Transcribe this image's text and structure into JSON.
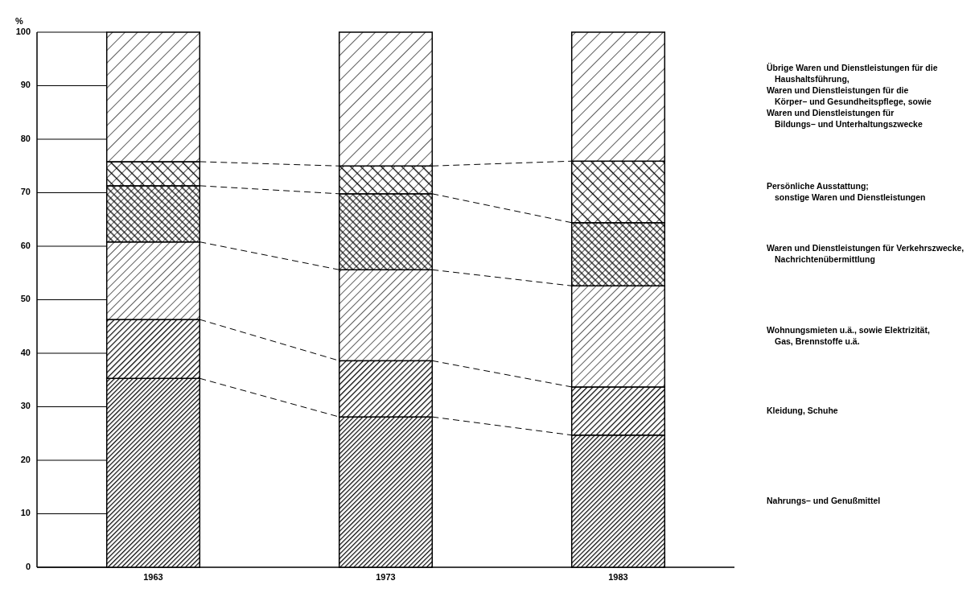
{
  "chart_data": {
    "type": "bar",
    "stacked": true,
    "ylabel": "%",
    "categories": [
      "1963",
      "1973",
      "1983"
    ],
    "ylim": [
      0,
      100
    ],
    "yticks": [
      0,
      10,
      20,
      30,
      40,
      50,
      60,
      70,
      80,
      90,
      100
    ],
    "legend": "right",
    "grid": false,
    "series": [
      {
        "name": "Nahrungs– und Genußmittel",
        "color": "#000000",
        "values": [
          35.3,
          28.1,
          24.7
        ]
      },
      {
        "name": "Kleidung, Schuhe",
        "color": "#000000",
        "values": [
          11.0,
          10.5,
          9.0
        ]
      },
      {
        "name": "Wohnungsmieten u.ä., sowie Elektrizität,\nGas, Brennstoffe u.ä.",
        "color": "#000000",
        "values": [
          14.5,
          17.0,
          18.9
        ]
      },
      {
        "name": "Waren und Dienstleistungen für Verkehrszwecke,\nNachrichtenübermittlung",
        "color": "#000000",
        "values": [
          10.5,
          14.2,
          11.8
        ]
      },
      {
        "name": "Persönliche Ausstattung;\nsonstige Waren und Dienstleistungen",
        "color": "#000000",
        "values": [
          4.5,
          5.2,
          11.5
        ]
      },
      {
        "name": "Übrige Waren und Dienstleistungen für die\nHaushaltsführung,\nWaren und Dienstleistungen für die\nKörper– und Gesundheitspflege, sowie\nWaren und Dienstleistungen für\nBildungs– und Unterhaltungszwecke",
        "color": "#000000",
        "values": [
          24.2,
          25.0,
          24.1
        ]
      }
    ]
  }
}
